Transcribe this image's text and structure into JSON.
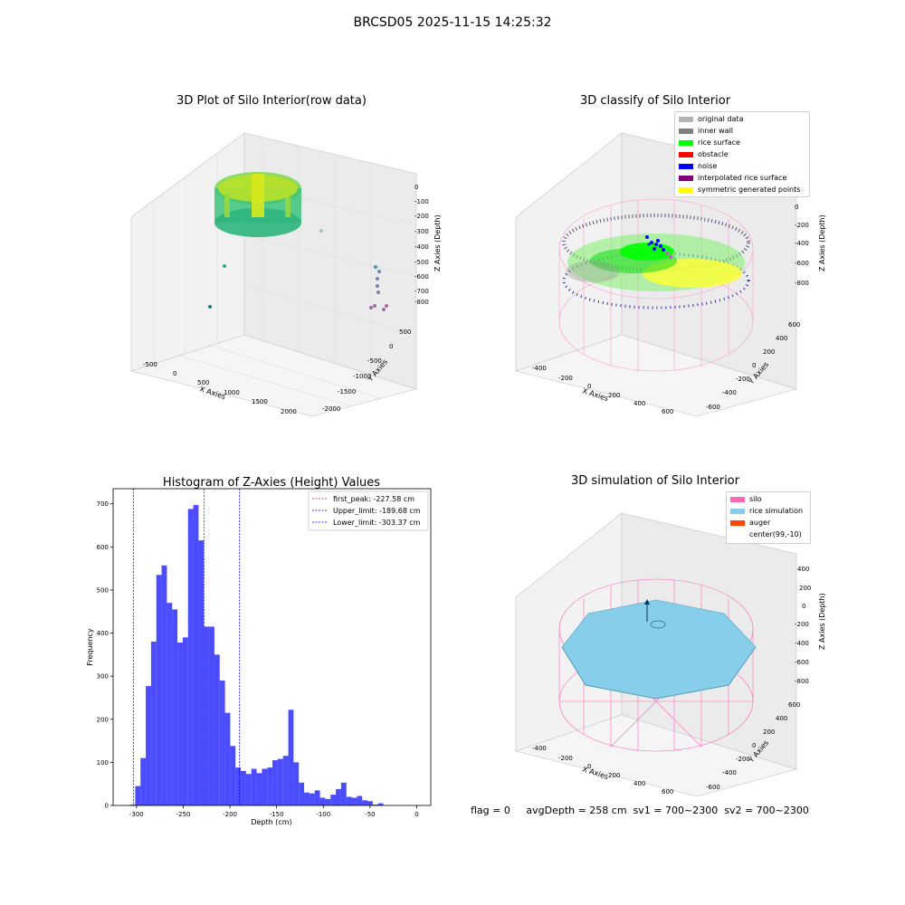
{
  "figure": {
    "suptitle": "BRCSD05 2025-11-15 14:25:32"
  },
  "panels": {
    "raw": {
      "title": "3D Plot of Silo Interior(row data)",
      "xlabel": "X Axies",
      "ylabel": "Y Axies",
      "zlabel": "Z Axies (Depth)",
      "x_ticks": [
        "-500",
        "0",
        "500",
        "1000",
        "1500",
        "2000"
      ],
      "y_ticks": [
        "500",
        "0",
        "-500",
        "-1000",
        "-1500",
        "-2000"
      ],
      "z_ticks": [
        "0",
        "-100",
        "-200",
        "-300",
        "-400",
        "-500",
        "-600",
        "-700",
        "-800"
      ]
    },
    "classify": {
      "title": "3D classify of Silo Interior",
      "xlabel": "X Axies",
      "ylabel": "Y Axies",
      "zlabel": "Z Axies (Depth)",
      "x_ticks": [
        "-400",
        "-200",
        "0",
        "200",
        "400",
        "600"
      ],
      "y_ticks": [
        "600",
        "400",
        "200",
        "0",
        "-200",
        "-400",
        "-600"
      ],
      "z_ticks": [
        "200",
        "0",
        "-200",
        "-400",
        "-600",
        "-800"
      ],
      "legend": [
        {
          "label": "original data",
          "color": "#b3b3b3"
        },
        {
          "label": "inner wall",
          "color": "#808080"
        },
        {
          "label": "rice surface",
          "color": "#00ff00"
        },
        {
          "label": "obstacle",
          "color": "#ff0000"
        },
        {
          "label": "noise",
          "color": "#0000ff"
        },
        {
          "label": "interpolated rice surface",
          "color": "#800080"
        },
        {
          "label": "symmetric generated points",
          "color": "#ffff00"
        }
      ]
    },
    "simulation": {
      "title": "3D simulation of Silo Interior",
      "xlabel": "X Axies",
      "ylabel": "Y Axies",
      "zlabel": "Z Axies (Depth)",
      "x_ticks": [
        "-400",
        "-200",
        "0",
        "200",
        "400",
        "600"
      ],
      "y_ticks": [
        "600",
        "400",
        "200",
        "0",
        "-200",
        "-400",
        "-600"
      ],
      "z_ticks": [
        "400",
        "200",
        "0",
        "-200",
        "-400",
        "-600",
        "-800"
      ],
      "legend": [
        {
          "label": "silo",
          "color": "#ff69b4"
        },
        {
          "label": "rice simulation",
          "color": "#87ceeb"
        },
        {
          "label": "auger",
          "color": "#ff4500"
        },
        {
          "label": "center(99,-10)",
          "color": "#ffffff"
        }
      ]
    }
  },
  "footer": {
    "flag": "flag = 0",
    "avg": "avgDepth = 258 cm",
    "sv1": "sv1 = 700~2300",
    "sv2": "sv2 = 700~2300"
  },
  "chart_data": [
    {
      "type": "bar",
      "title": "Histogram of Z-Axies (Height) Values",
      "xlabel": "Depth (cm)",
      "ylabel": "Frequency",
      "xlim": [
        -325,
        15
      ],
      "ylim": [
        0,
        735
      ],
      "x_ticks": [
        -300,
        -250,
        -200,
        -150,
        -100,
        -50,
        0
      ],
      "y_ticks": [
        0,
        100,
        200,
        300,
        400,
        500,
        600,
        700
      ],
      "bin_width": 5.65,
      "bin_start": -307,
      "color": "#0000ff",
      "values": [
        2,
        45,
        110,
        277,
        380,
        535,
        557,
        470,
        455,
        378,
        390,
        688,
        697,
        615,
        415,
        415,
        350,
        290,
        215,
        138,
        88,
        80,
        73,
        85,
        75,
        85,
        88,
        105,
        108,
        115,
        222,
        100,
        53,
        30,
        28,
        35,
        18,
        15,
        25,
        38,
        53,
        20,
        18,
        22,
        12,
        10,
        2,
        5
      ],
      "lines": [
        {
          "label": "first_peak: -227.58 cm",
          "value": -227.58,
          "color": "#ff0000"
        },
        {
          "label": "Upper_limit: -189.68 cm",
          "value": -189.68,
          "color": "#0000ff"
        },
        {
          "label": "Lower_limit: -303.37 cm",
          "value": -303.37,
          "color": "#0000ff"
        }
      ]
    }
  ]
}
